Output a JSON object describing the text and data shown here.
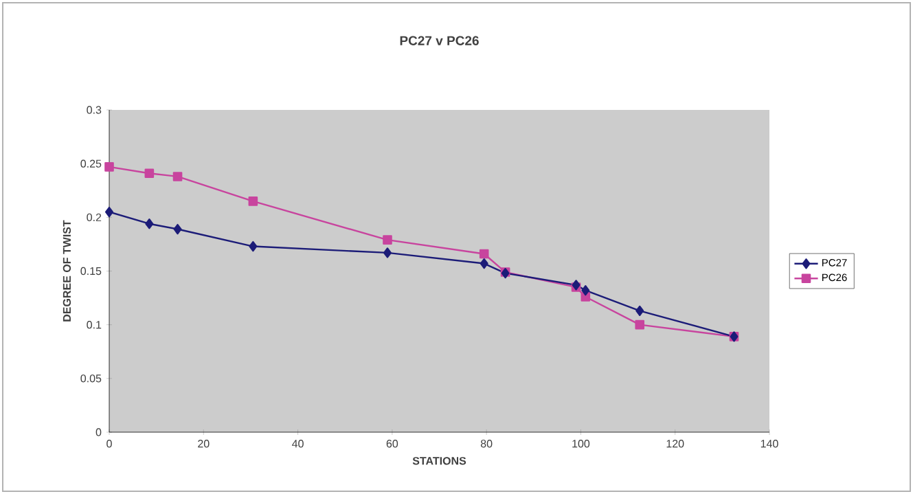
{
  "chart_data": {
    "type": "line",
    "title": "PC27 v PC26",
    "xlabel": "STATIONS",
    "ylabel": "DEGREE OF TWIST",
    "xlim": [
      0,
      140
    ],
    "xticks": [
      0,
      20,
      40,
      60,
      80,
      100,
      120,
      140
    ],
    "ylim": [
      0,
      0.3
    ],
    "yticks": [
      0,
      0.05,
      0.1,
      0.15,
      0.2,
      0.25,
      0.3
    ],
    "legend": "right",
    "series": [
      {
        "name": "PC27",
        "color": "#1c1c78",
        "marker": "diamond",
        "x": [
          0,
          8.5,
          14.5,
          30.5,
          59,
          79.5,
          84,
          99,
          101,
          112.5,
          132.5
        ],
        "values": [
          0.205,
          0.194,
          0.189,
          0.173,
          0.167,
          0.157,
          0.148,
          0.137,
          0.132,
          0.113,
          0.089
        ]
      },
      {
        "name": "PC26",
        "color": "#c8449e",
        "marker": "square",
        "x": [
          0,
          8.5,
          14.5,
          30.5,
          59,
          79.5,
          84,
          99,
          101,
          112.5,
          132.5
        ],
        "values": [
          0.247,
          0.241,
          0.238,
          0.215,
          0.179,
          0.166,
          0.149,
          0.135,
          0.126,
          0.1,
          0.089
        ]
      }
    ]
  }
}
